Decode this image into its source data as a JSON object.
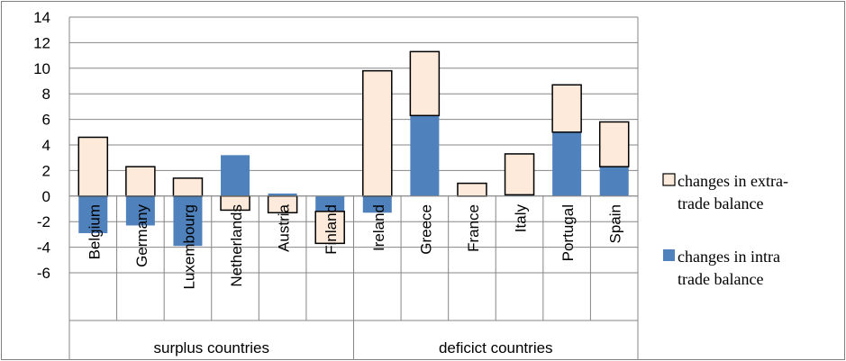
{
  "chart_data": {
    "type": "bar",
    "stacked": true,
    "ylim": [
      -6,
      14
    ],
    "yticks": [
      "14",
      "12",
      "10",
      "8",
      "6",
      "4",
      "2",
      "0",
      "-2",
      "-4",
      "-6"
    ],
    "categories": [
      "Belgium",
      "Germany",
      "Luxembourg",
      "Netherlands",
      "Austria",
      "Finland",
      "Ireland",
      "Greece",
      "France",
      "Italy",
      "Portugal",
      "Spain"
    ],
    "groups": [
      {
        "label": "surplus countries",
        "count": 6
      },
      {
        "label": "deficict countries",
        "count": 6
      }
    ],
    "series": [
      {
        "name": "changes in intra trade balance",
        "legend_lines": [
          "changes in intra",
          "trade balance"
        ],
        "color": "#4f81bd",
        "values": [
          -2.9,
          -2.3,
          -3.9,
          3.2,
          0.2,
          -1.2,
          -1.3,
          6.3,
          0,
          0.1,
          5.0,
          2.3
        ]
      },
      {
        "name": "changes in extra-trade balance",
        "legend_lines": [
          "changes in extra-",
          "trade balance"
        ],
        "color": "#fdeada",
        "values": [
          4.6,
          2.3,
          1.4,
          -1.1,
          -1.3,
          -2.5,
          9.8,
          5.0,
          1.0,
          3.2,
          3.7,
          3.5
        ]
      }
    ],
    "grid": true,
    "legend": "right"
  }
}
